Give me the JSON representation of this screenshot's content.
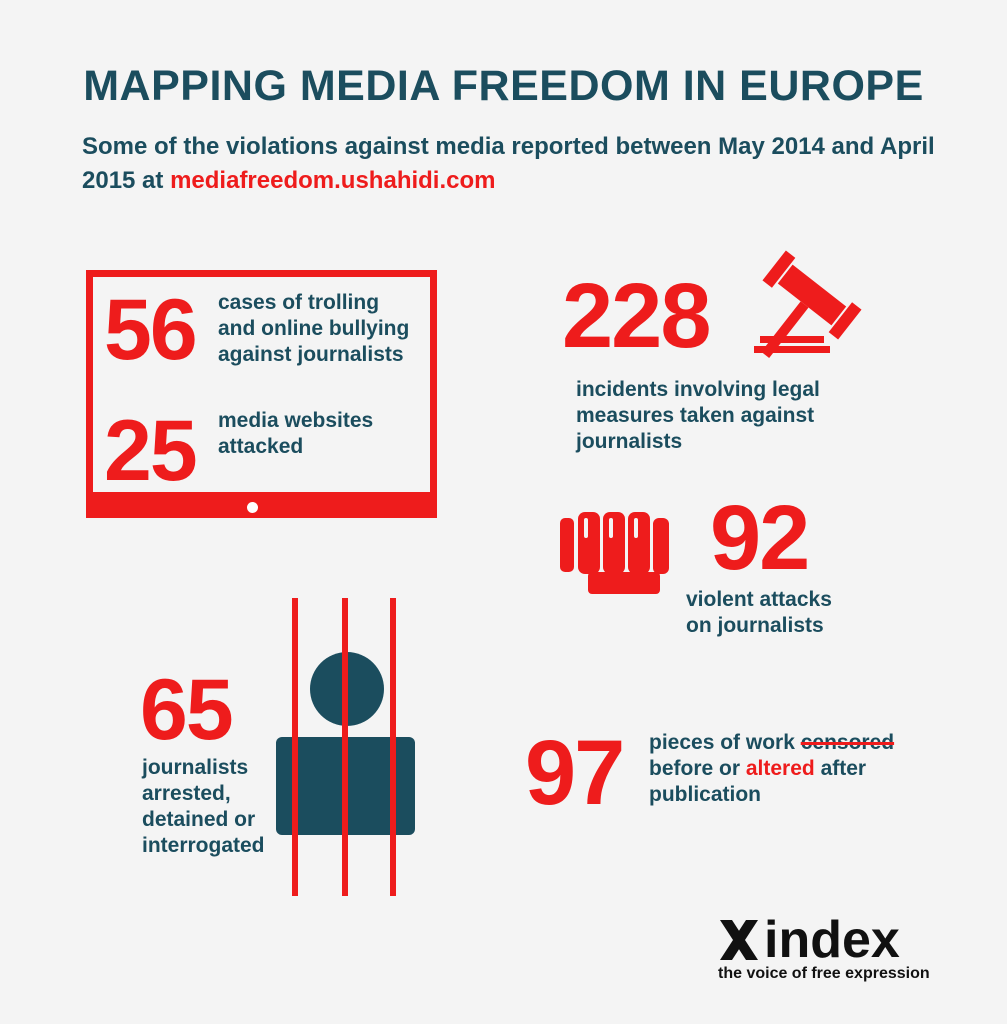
{
  "title": "MAPPING MEDIA FREEDOM IN EUROPE",
  "subtitle": {
    "text": "Some of the violations against media reported between May 2014 and April 2015 at ",
    "link": "mediafreedom.ushahidi.com"
  },
  "stats": {
    "trolling": {
      "number": "56",
      "lines": [
        "cases of trolling",
        "and online bullying",
        "against journalists"
      ]
    },
    "websites": {
      "number": "25",
      "lines": [
        "media websites",
        "attacked"
      ]
    },
    "legal": {
      "number": "228",
      "lines": [
        "incidents involving legal",
        "measures taken against",
        "journalists"
      ]
    },
    "violent": {
      "number": "92",
      "lines": [
        "violent attacks",
        "on journalists"
      ]
    },
    "arrested": {
      "number": "65",
      "lines": [
        "journalists",
        "arrested,",
        "detained or",
        "interrogated"
      ]
    },
    "censored": {
      "number": "97",
      "line1_prefix": "pieces of work ",
      "line1_strike": "censored",
      "line2_prefix": "before or ",
      "line2_highlight": "altered",
      "line2_suffix": " after",
      "line3": "publication"
    }
  },
  "logo": {
    "name": "index",
    "tagline": "the voice of free expression"
  },
  "colors": {
    "red": "#ee1c1c",
    "teal": "#1b4d5e",
    "background": "#f4f4f4"
  },
  "icons": [
    "monitor-icon",
    "gavel-icon",
    "fist-icon",
    "prison-bars-icon",
    "person-icon",
    "index-x-logo"
  ]
}
